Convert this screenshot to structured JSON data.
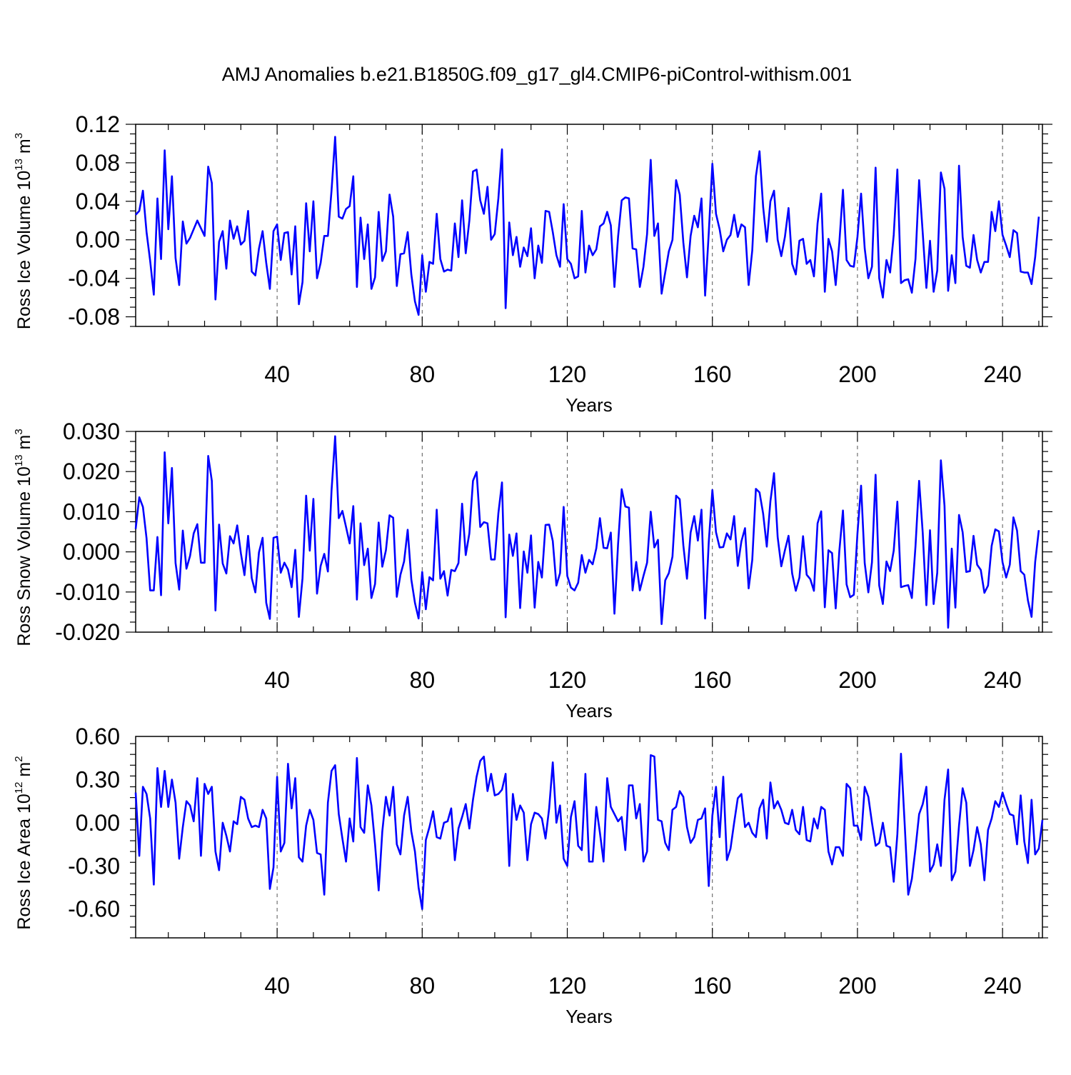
{
  "title": "AMJ Anomalies b.e21.B1850G.f09_g17_gl4.CMIP6-piControl-withism.001",
  "colors": {
    "series": "#0000ff",
    "axis": "#000000",
    "grid": "#555555"
  },
  "chart_data": [
    {
      "type": "line",
      "ylabel": {
        "text": "Ross Ice Volume 10",
        "exp": "13",
        "unit": " m",
        "unit_exp": "3"
      },
      "xlabel": "Years",
      "xlim": [
        1,
        251
      ],
      "ylim": [
        -0.09,
        0.12
      ],
      "yticks": [
        "-0.08",
        "-0.04",
        "0.00",
        "0.04",
        "0.08",
        "0.12"
      ],
      "xticks": [
        "40",
        "80",
        "120",
        "160",
        "200",
        "240"
      ],
      "grid": "vertical dashed at major x ticks",
      "series": [
        {
          "values": [
            0.026,
            0.03,
            0.051,
            0.008,
            -0.022,
            -0.057,
            0.043,
            -0.02,
            0.093,
            0.011,
            0.066,
            -0.019,
            -0.047,
            0.019,
            -0.004,
            0.002,
            0.011,
            0.02,
            0.012,
            0.004,
            0.076,
            0.059,
            -0.062,
            -0.002,
            0.009,
            -0.03,
            0.02,
            0.001,
            0.014,
            -0.005,
            -0.001,
            0.03,
            -0.033,
            -0.037,
            -0.009,
            0.009,
            -0.024,
            -0.051,
            0.009,
            0.016,
            -0.021,
            0.007,
            0.008,
            -0.036,
            0.014,
            -0.067,
            -0.044,
            0.038,
            -0.012,
            0.04,
            -0.04,
            -0.024,
            0.004,
            0.004,
            0.051,
            0.107,
            0.024,
            0.022,
            0.032,
            0.035,
            0.066,
            -0.049,
            0.023,
            -0.02,
            0.016,
            -0.051,
            -0.039,
            0.029,
            -0.022,
            -0.012,
            0.047,
            0.024,
            -0.048,
            -0.015,
            -0.014,
            0.008,
            -0.036,
            -0.064,
            -0.078,
            -0.016,
            -0.054,
            -0.023,
            -0.025,
            0.027,
            -0.02,
            -0.033,
            -0.031,
            -0.032,
            0.017,
            -0.018,
            0.041,
            -0.014,
            0.02,
            0.071,
            0.073,
            0.041,
            0.027,
            0.055,
            0.0,
            0.006,
            0.043,
            0.094,
            -0.071,
            0.018,
            -0.016,
            0.003,
            -0.028,
            -0.008,
            -0.017,
            0.012,
            -0.04,
            -0.006,
            -0.024,
            0.03,
            0.029,
            0.008,
            -0.016,
            -0.028,
            0.037,
            -0.02,
            -0.025,
            -0.04,
            -0.038,
            0.03,
            -0.034,
            -0.006,
            -0.016,
            -0.01,
            0.014,
            0.017,
            0.029,
            0.015,
            -0.049,
            0.003,
            0.041,
            0.044,
            0.043,
            -0.009,
            -0.01,
            -0.049,
            -0.028,
            0.006,
            0.083,
            0.004,
            0.017,
            -0.056,
            -0.034,
            -0.012,
            0.0,
            0.062,
            0.047,
            -0.003,
            -0.039,
            0.004,
            0.025,
            0.013,
            0.043,
            -0.058,
            0.007,
            0.079,
            0.027,
            0.011,
            -0.012,
            0.0,
            0.005,
            0.026,
            0.003,
            0.016,
            0.013,
            -0.047,
            -0.011,
            0.066,
            0.092,
            0.034,
            -0.002,
            0.04,
            0.051,
            0.0,
            -0.017,
            0.003,
            0.033,
            -0.025,
            -0.036,
            -0.001,
            0.001,
            -0.025,
            -0.021,
            -0.038,
            0.017,
            0.048,
            -0.054,
            0.001,
            -0.012,
            -0.047,
            -0.003,
            0.052,
            -0.021,
            -0.027,
            -0.028,
            0.003,
            0.048,
            -0.009,
            -0.04,
            -0.028,
            0.075,
            -0.04,
            -0.06,
            -0.021,
            -0.034,
            0.005,
            0.073,
            -0.045,
            -0.042,
            -0.041,
            -0.055,
            -0.02,
            0.062,
            0.007,
            -0.05,
            -0.001,
            -0.054,
            -0.032,
            0.07,
            0.053,
            -0.053,
            -0.016,
            -0.045,
            0.077,
            0.003,
            -0.027,
            -0.029,
            0.005,
            -0.021,
            -0.034,
            -0.023,
            -0.023,
            0.029,
            0.009,
            0.04,
            0.005,
            -0.006,
            -0.018,
            0.01,
            0.007,
            -0.033,
            -0.034,
            -0.034,
            -0.046,
            -0.018,
            0.024
          ]
        }
      ]
    },
    {
      "type": "line",
      "ylabel": {
        "text": "Ross Snow Volume 10",
        "exp": "13",
        "unit": " m",
        "unit_exp": "3"
      },
      "xlabel": "Years",
      "xlim": [
        1,
        251
      ],
      "ylim": [
        -0.02,
        0.03
      ],
      "yticks": [
        "-0.020",
        "-0.010",
        "0.000",
        "0.010",
        "0.020",
        "0.030"
      ],
      "xticks": [
        "40",
        "80",
        "120",
        "160",
        "200",
        "240"
      ],
      "grid": "vertical dashed at major x ticks",
      "series": [
        {
          "values": [
            0.0057,
            0.0136,
            0.0112,
            0.0034,
            -0.0096,
            -0.0096,
            0.0037,
            -0.0108,
            0.0248,
            0.0071,
            0.0209,
            -0.0028,
            -0.0094,
            0.0053,
            -0.0042,
            -0.001,
            0.0046,
            0.0069,
            -0.0027,
            -0.0027,
            0.0239,
            0.0177,
            -0.0146,
            0.0068,
            -0.0029,
            -0.0054,
            0.0039,
            0.0021,
            0.0066,
            -0.0003,
            -0.0058,
            0.004,
            -0.0065,
            -0.0101,
            -0.0001,
            0.0035,
            -0.0127,
            -0.0167,
            0.0035,
            0.0038,
            -0.0052,
            -0.0027,
            -0.0044,
            -0.0088,
            0.0005,
            -0.0162,
            -0.0066,
            0.014,
            0.0003,
            0.0132,
            -0.0104,
            -0.0035,
            -0.0005,
            -0.0049,
            0.0152,
            0.0288,
            0.0084,
            0.0102,
            0.0062,
            0.0021,
            0.0114,
            -0.0119,
            0.0071,
            -0.0033,
            0.0008,
            -0.0115,
            -0.008,
            0.0073,
            -0.0037,
            0.0004,
            0.0091,
            0.0085,
            -0.0112,
            -0.0057,
            -0.0024,
            0.0055,
            -0.0069,
            -0.0127,
            -0.0166,
            -0.005,
            -0.0143,
            -0.0063,
            -0.0071,
            0.0105,
            -0.0067,
            -0.0048,
            -0.0109,
            -0.0045,
            -0.0048,
            -0.0028,
            0.012,
            -0.0008,
            0.0046,
            0.0177,
            0.0199,
            0.0062,
            0.0074,
            0.0071,
            -0.0019,
            -0.0019,
            0.0096,
            0.0173,
            -0.0163,
            0.0043,
            -0.001,
            0.0046,
            -0.014,
            0.0001,
            -0.0052,
            0.0041,
            -0.0139,
            -0.0025,
            -0.0064,
            0.0067,
            0.0068,
            0.0027,
            -0.0084,
            -0.0053,
            0.0112,
            -0.006,
            -0.0089,
            -0.0096,
            -0.0077,
            -0.0008,
            -0.0052,
            -0.002,
            -0.0031,
            0.0009,
            0.0084,
            0.001,
            0.0009,
            0.0048,
            -0.0154,
            0.0019,
            0.0156,
            0.0113,
            0.011,
            -0.0096,
            -0.0025,
            -0.0096,
            -0.006,
            -0.0027,
            0.01,
            0.0011,
            0.003,
            -0.018,
            -0.0071,
            -0.0053,
            -0.0012,
            0.014,
            0.0131,
            0.0016,
            -0.0067,
            0.0048,
            0.0089,
            0.0028,
            0.0105,
            -0.0166,
            0.0024,
            0.0154,
            0.0049,
            0.0011,
            0.0012,
            0.0046,
            0.0031,
            0.0089,
            -0.0035,
            0.0026,
            0.0059,
            -0.0091,
            -0.002,
            0.0157,
            0.0148,
            0.0095,
            0.0013,
            0.0126,
            0.0196,
            0.0037,
            -0.0036,
            0.0004,
            0.004,
            -0.0054,
            -0.0097,
            -0.0064,
            0.0039,
            -0.0057,
            -0.0068,
            -0.0097,
            0.0071,
            0.0101,
            -0.0138,
            0.0004,
            -0.0003,
            -0.0141,
            0.0002,
            0.0103,
            -0.0081,
            -0.0113,
            -0.0107,
            0.0046,
            0.0165,
            -0.0028,
            -0.0101,
            -0.0026,
            0.0192,
            -0.0084,
            -0.013,
            -0.0024,
            -0.0048,
            0.0003,
            0.0125,
            -0.0088,
            -0.0085,
            -0.0083,
            -0.0115,
            0.0014,
            0.0177,
            0.0047,
            -0.0133,
            0.0054,
            -0.013,
            -0.0052,
            0.0228,
            0.0115,
            -0.0189,
            0.0008,
            -0.0139,
            0.0092,
            0.0049,
            -0.005,
            -0.0048,
            0.004,
            -0.0032,
            -0.0045,
            -0.0102,
            -0.0084,
            0.0015,
            0.0056,
            0.0051,
            -0.0026,
            -0.0064,
            -0.0032,
            0.0086,
            0.0053,
            -0.0048,
            -0.0057,
            -0.0121,
            -0.0162,
            -0.0025,
            0.0054
          ]
        }
      ]
    },
    {
      "type": "line",
      "ylabel": {
        "text": "Ross Ice Area 10",
        "exp": "12",
        "unit": " m",
        "unit_exp": "2"
      },
      "xlabel": "Years",
      "xlim": [
        1,
        251
      ],
      "ylim": [
        -0.8,
        0.6
      ],
      "yticks": [
        "-0.60",
        "-0.30",
        "0.00",
        "0.30",
        "0.60"
      ],
      "xticks": [
        "40",
        "80",
        "120",
        "160",
        "200",
        "240"
      ],
      "grid": "vertical dashed at major x ticks",
      "series": [
        {
          "values": [
            0.21,
            -0.23,
            0.25,
            0.2,
            0.03,
            -0.43,
            0.38,
            0.11,
            0.36,
            0.11,
            0.3,
            0.14,
            -0.25,
            -0.03,
            0.15,
            0.12,
            0.01,
            0.31,
            -0.23,
            0.27,
            0.2,
            0.25,
            -0.2,
            -0.33,
            0.0,
            -0.09,
            -0.2,
            0.01,
            -0.01,
            0.18,
            0.16,
            0.03,
            -0.03,
            -0.02,
            -0.03,
            0.09,
            0.03,
            -0.46,
            -0.31,
            0.32,
            -0.2,
            -0.14,
            0.41,
            0.1,
            0.31,
            -0.24,
            -0.27,
            -0.02,
            0.09,
            0.02,
            -0.21,
            -0.22,
            -0.5,
            0.14,
            0.36,
            0.4,
            0.06,
            -0.11,
            -0.27,
            0.03,
            -0.13,
            0.45,
            -0.03,
            -0.07,
            0.26,
            0.12,
            -0.15,
            -0.47,
            -0.06,
            0.18,
            0.05,
            0.25,
            -0.15,
            -0.22,
            0.05,
            0.18,
            -0.06,
            -0.2,
            -0.45,
            -0.6,
            -0.12,
            -0.03,
            0.08,
            -0.1,
            -0.11,
            0.0,
            0.01,
            0.1,
            -0.26,
            -0.04,
            0.04,
            0.13,
            -0.04,
            0.16,
            0.32,
            0.43,
            0.46,
            0.22,
            0.34,
            0.19,
            0.2,
            0.23,
            0.34,
            -0.3,
            0.2,
            0.02,
            0.12,
            0.07,
            -0.26,
            -0.01,
            0.07,
            0.06,
            0.03,
            -0.11,
            0.1,
            0.42,
            0.0,
            0.12,
            -0.25,
            -0.3,
            0.04,
            0.15,
            -0.16,
            -0.19,
            0.34,
            -0.27,
            -0.27,
            0.11,
            -0.07,
            -0.27,
            0.31,
            0.11,
            0.06,
            0.01,
            0.04,
            -0.19,
            0.26,
            0.26,
            0.03,
            0.13,
            -0.27,
            -0.2,
            0.47,
            0.46,
            0.02,
            0.01,
            -0.14,
            -0.19,
            0.09,
            0.11,
            0.22,
            0.18,
            -0.03,
            -0.14,
            -0.1,
            0.02,
            0.03,
            0.1,
            -0.44,
            0.05,
            0.25,
            -0.1,
            0.32,
            -0.26,
            -0.18,
            0.0,
            0.17,
            0.2,
            -0.03,
            0.0,
            -0.07,
            -0.1,
            0.1,
            0.16,
            -0.11,
            0.28,
            0.1,
            0.15,
            0.09,
            0.0,
            -0.01,
            0.09,
            -0.05,
            -0.08,
            0.11,
            -0.12,
            -0.13,
            0.03,
            -0.04,
            0.11,
            0.09,
            -0.2,
            -0.29,
            -0.17,
            -0.17,
            -0.23,
            0.27,
            0.24,
            -0.02,
            -0.02,
            -0.12,
            0.25,
            0.18,
            0.0,
            -0.16,
            -0.14,
            0.0,
            -0.16,
            -0.17,
            -0.41,
            -0.08,
            0.48,
            0.0,
            -0.5,
            -0.39,
            -0.18,
            0.06,
            0.13,
            0.25,
            -0.34,
            -0.29,
            -0.15,
            -0.3,
            0.16,
            0.37,
            -0.4,
            -0.34,
            -0.02,
            0.24,
            0.14,
            -0.3,
            -0.19,
            -0.03,
            -0.15,
            -0.4,
            -0.05,
            0.03,
            0.15,
            0.11,
            0.21,
            0.13,
            0.06,
            0.05,
            -0.15,
            0.19,
            -0.13,
            -0.28,
            0.16,
            -0.22,
            -0.18,
            0.02
          ]
        }
      ]
    }
  ]
}
